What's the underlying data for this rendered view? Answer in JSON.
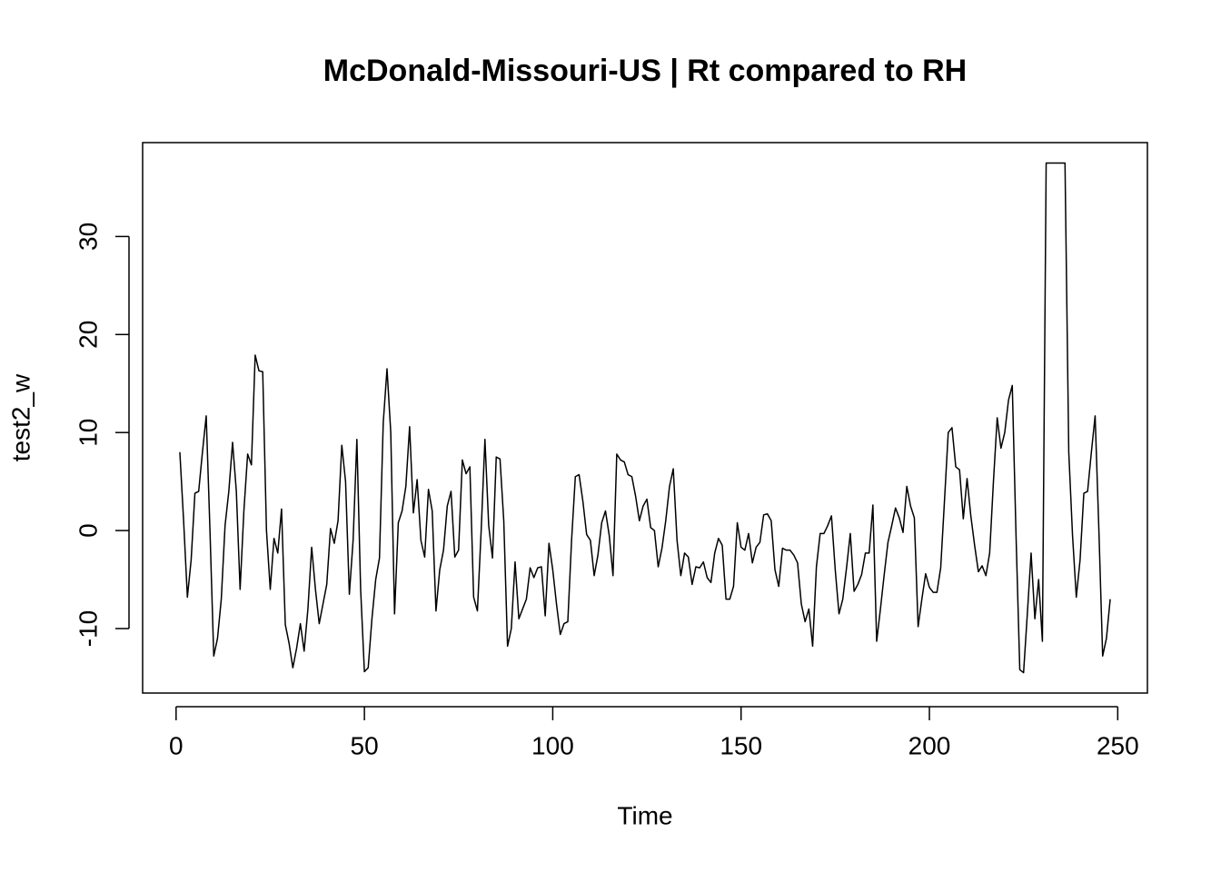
{
  "chart_data": {
    "type": "line",
    "title": "McDonald-Missouri-US | Rt compared to RH",
    "xlabel": "Time",
    "ylabel": "test2_w",
    "color": "#000000",
    "x": [
      1,
      2,
      3,
      4,
      5,
      6,
      7,
      8,
      9,
      10,
      11,
      12,
      13,
      14,
      15,
      16,
      17,
      18,
      19,
      20,
      21,
      22,
      23,
      24,
      25,
      26,
      27,
      28,
      29,
      30,
      31,
      32,
      33,
      34,
      35,
      36,
      37,
      38,
      39,
      40,
      41,
      42,
      43,
      44,
      45,
      46,
      47,
      48,
      49,
      50,
      51,
      52,
      53,
      54,
      55,
      56,
      57,
      58,
      59,
      60,
      61,
      62,
      63,
      64,
      65,
      66,
      67,
      68,
      69,
      70,
      71,
      72,
      73,
      74,
      75,
      76,
      77,
      78,
      79,
      80,
      81,
      82,
      83,
      84,
      85,
      86,
      87,
      88,
      89,
      90,
      91,
      92,
      93,
      94,
      95,
      96,
      97,
      98,
      99,
      100,
      101,
      102,
      103,
      104,
      105,
      106,
      107,
      108,
      109,
      110,
      111,
      112,
      113,
      114,
      115,
      116,
      117,
      118,
      119,
      120,
      121,
      122,
      123,
      124,
      125,
      126,
      127,
      128,
      129,
      130,
      131,
      132,
      133,
      134,
      135,
      136,
      137,
      138,
      139,
      140,
      141,
      142,
      143,
      144,
      145,
      146,
      147,
      148,
      149,
      150,
      151,
      152,
      153,
      154,
      155,
      156,
      157,
      158,
      159,
      160,
      161,
      162,
      163,
      164,
      165,
      166,
      167,
      168,
      169,
      170,
      171,
      172,
      173,
      174,
      175,
      176,
      177,
      178,
      179,
      180,
      181,
      182,
      183,
      184,
      185,
      186,
      187,
      188,
      189,
      190,
      191,
      192,
      193,
      194,
      195,
      196,
      197,
      198,
      199,
      200,
      201,
      202,
      203,
      204,
      205,
      206,
      207,
      208,
      209,
      210,
      211,
      212,
      213,
      214,
      215,
      216,
      217,
      218,
      219,
      220,
      221,
      222,
      223,
      224,
      225,
      226,
      227,
      228,
      229,
      230,
      231,
      232,
      233,
      234,
      235,
      236,
      237,
      238,
      239,
      240,
      241,
      242,
      243,
      244,
      245,
      246,
      247,
      248
    ],
    "values": [
      8,
      1,
      -6.8,
      -3,
      3.8,
      4,
      8,
      11.7,
      0,
      -12.8,
      -11,
      -7,
      0.5,
      4,
      9,
      4,
      -6,
      2,
      7.8,
      6.7,
      17.9,
      16.3,
      16.2,
      0,
      -6,
      -0.8,
      -2.3,
      2.2,
      -9.6,
      -11.5,
      -14,
      -12,
      -9.5,
      -12.3,
      -8,
      -1.7,
      -6,
      -9.5,
      -7.5,
      -5.5,
      0.2,
      -1.3,
      1,
      8.7,
      5,
      -6.5,
      -1,
      9.3,
      -6,
      -14.4,
      -14,
      -9,
      -5,
      -2.8,
      11,
      16.5,
      10,
      -8.5,
      0.8,
      2,
      4.5,
      10.6,
      1.8,
      5.2,
      -1,
      -2.7,
      4.2,
      2,
      -8.2,
      -4,
      -2,
      2.5,
      4,
      -2.7,
      -2,
      7.2,
      5.8,
      6.5,
      -6.8,
      -8.2,
      0,
      9.3,
      0.5,
      -2.8,
      7.5,
      7.3,
      1,
      -11.8,
      -10,
      -3.2,
      -9,
      -8,
      -7,
      -3.8,
      -4.8,
      -3.8,
      -3.7,
      -8.7,
      -1.3,
      -4,
      -7.5,
      -10.6,
      -9.5,
      -9.3,
      -1,
      5.5,
      5.7,
      3,
      -0.4,
      -1,
      -4.6,
      -2.5,
      0.8,
      2,
      -0.5,
      -4.6,
      7.8,
      7.2,
      7,
      5.7,
      5.5,
      3.5,
      1,
      2.5,
      3.2,
      0.3,
      0,
      -3.7,
      -1.8,
      1,
      4.5,
      6.3,
      -1,
      -4.6,
      -2.3,
      -2.7,
      -5.5,
      -3.7,
      -3.8,
      -3.2,
      -4.8,
      -5.3,
      -2.3,
      -0.8,
      -1.5,
      -7,
      -7,
      -5.7,
      0.8,
      -1.7,
      -2,
      -0.3,
      -3.3,
      -1.7,
      -1.2,
      1.6,
      1.7,
      1,
      -4,
      -5.7,
      -1.8,
      -2,
      -2,
      -2.5,
      -3.3,
      -7.5,
      -9.3,
      -8,
      -11.8,
      -3.7,
      -0.3,
      -0.3,
      0.5,
      1.5,
      -4,
      -8.5,
      -7,
      -3.8,
      -0.3,
      -6.2,
      -5.5,
      -4.5,
      -2.3,
      -2.3,
      2.6,
      -11.3,
      -8,
      -4.5,
      -1.2,
      0.5,
      2.3,
      1.3,
      -0.2,
      4.5,
      2.5,
      1.3,
      -9.8,
      -7,
      -4.4,
      -5.8,
      -6.3,
      -6.3,
      -3.8,
      3,
      10,
      10.5,
      6.5,
      6.2,
      1.2,
      5.3,
      1.5,
      -1.5,
      -4.2,
      -3.6,
      -4.6,
      -2.3,
      5,
      11.5,
      8.4,
      10,
      13.3,
      14.8,
      -0.5,
      -14.2,
      -14.5,
      -8.5,
      -2.3,
      -9,
      -5,
      -11.3,
      37.5,
      37.5,
      37.5,
      37.5,
      37.5,
      37.5,
      8,
      -0.5,
      -6.8,
      -3,
      3.8,
      4,
      8,
      11.7,
      0,
      -12.8,
      -11,
      -7
    ],
    "xlim": [
      -8.88,
      257.88
    ],
    "ylim": [
      -16.58,
      39.58
    ],
    "xticks": [
      0,
      50,
      100,
      150,
      200,
      250
    ],
    "yticks": [
      -10,
      0,
      10,
      20,
      30
    ]
  }
}
